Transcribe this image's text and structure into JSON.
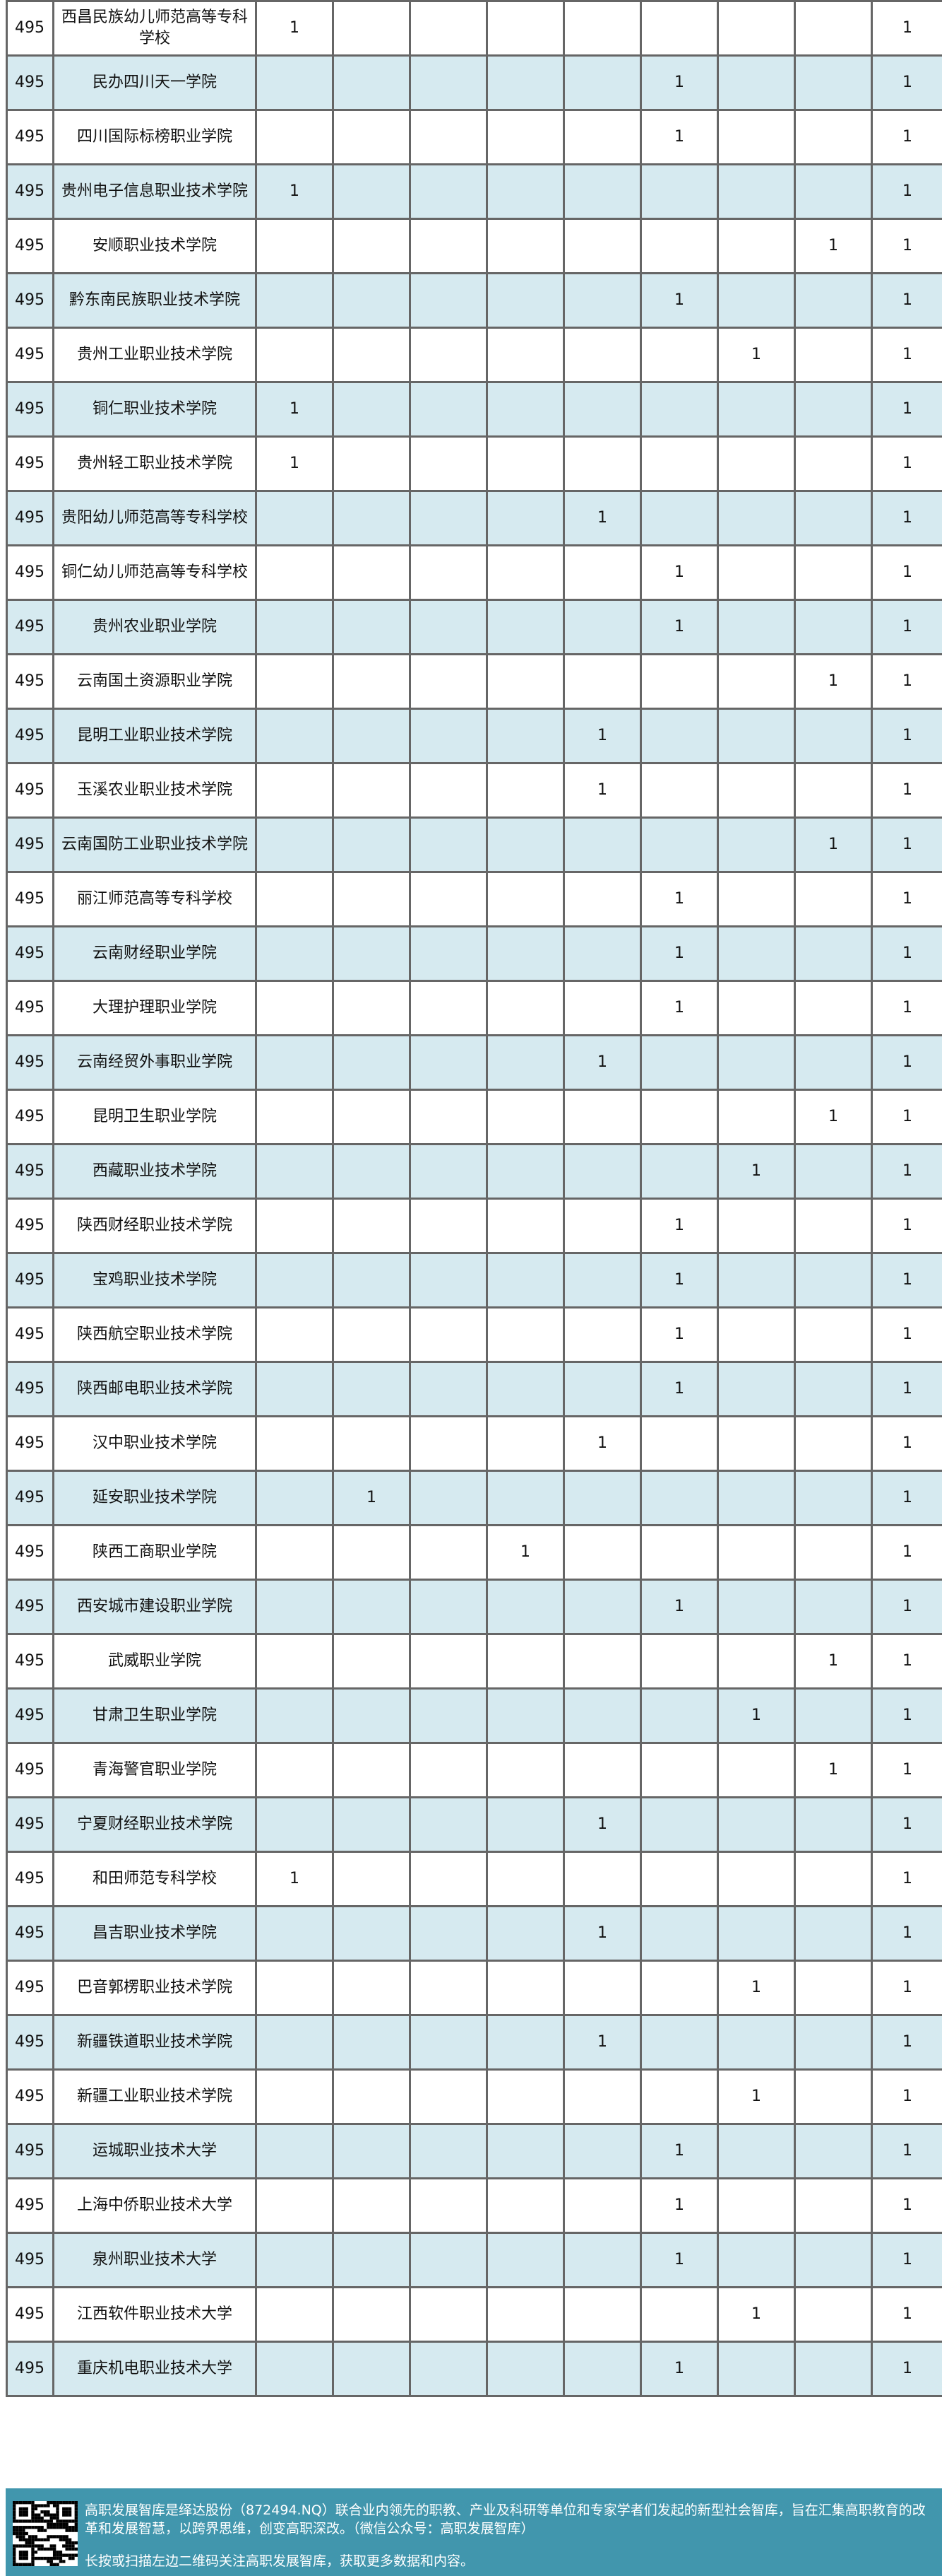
{
  "colors": {
    "row_alt": "#d6eaf0",
    "border": "#666666",
    "footer_bg": "#4196ad"
  },
  "rows": [
    {
      "rank": "495",
      "name": "西昌民族幼儿师范高等专科学校",
      "col": 1,
      "total": "1"
    },
    {
      "rank": "495",
      "name": "民办四川天一学院",
      "col": 6,
      "total": "1"
    },
    {
      "rank": "495",
      "name": "四川国际标榜职业学院",
      "col": 6,
      "total": "1"
    },
    {
      "rank": "495",
      "name": "贵州电子信息职业技术学院",
      "col": 1,
      "total": "1"
    },
    {
      "rank": "495",
      "name": "安顺职业技术学院",
      "col": 8,
      "total": "1"
    },
    {
      "rank": "495",
      "name": "黔东南民族职业技术学院",
      "col": 6,
      "total": "1"
    },
    {
      "rank": "495",
      "name": "贵州工业职业技术学院",
      "col": 7,
      "total": "1"
    },
    {
      "rank": "495",
      "name": "铜仁职业技术学院",
      "col": 1,
      "total": "1"
    },
    {
      "rank": "495",
      "name": "贵州轻工职业技术学院",
      "col": 1,
      "total": "1"
    },
    {
      "rank": "495",
      "name": "贵阳幼儿师范高等专科学校",
      "col": 5,
      "total": "1"
    },
    {
      "rank": "495",
      "name": "铜仁幼儿师范高等专科学校",
      "col": 6,
      "total": "1"
    },
    {
      "rank": "495",
      "name": "贵州农业职业学院",
      "col": 6,
      "total": "1"
    },
    {
      "rank": "495",
      "name": "云南国土资源职业学院",
      "col": 8,
      "total": "1"
    },
    {
      "rank": "495",
      "name": "昆明工业职业技术学院",
      "col": 5,
      "total": "1"
    },
    {
      "rank": "495",
      "name": "玉溪农业职业技术学院",
      "col": 5,
      "total": "1"
    },
    {
      "rank": "495",
      "name": "云南国防工业职业技术学院",
      "col": 8,
      "total": "1"
    },
    {
      "rank": "495",
      "name": "丽江师范高等专科学校",
      "col": 6,
      "total": "1"
    },
    {
      "rank": "495",
      "name": "云南财经职业学院",
      "col": 6,
      "total": "1"
    },
    {
      "rank": "495",
      "name": "大理护理职业学院",
      "col": 6,
      "total": "1"
    },
    {
      "rank": "495",
      "name": "云南经贸外事职业学院",
      "col": 5,
      "total": "1"
    },
    {
      "rank": "495",
      "name": "昆明卫生职业学院",
      "col": 8,
      "total": "1"
    },
    {
      "rank": "495",
      "name": "西藏职业技术学院",
      "col": 7,
      "total": "1"
    },
    {
      "rank": "495",
      "name": "陕西财经职业技术学院",
      "col": 6,
      "total": "1"
    },
    {
      "rank": "495",
      "name": "宝鸡职业技术学院",
      "col": 6,
      "total": "1"
    },
    {
      "rank": "495",
      "name": "陕西航空职业技术学院",
      "col": 6,
      "total": "1"
    },
    {
      "rank": "495",
      "name": "陕西邮电职业技术学院",
      "col": 6,
      "total": "1"
    },
    {
      "rank": "495",
      "name": "汉中职业技术学院",
      "col": 5,
      "total": "1"
    },
    {
      "rank": "495",
      "name": "延安职业技术学院",
      "col": 2,
      "total": "1"
    },
    {
      "rank": "495",
      "name": "陕西工商职业学院",
      "col": 4,
      "total": "1"
    },
    {
      "rank": "495",
      "name": "西安城市建设职业学院",
      "col": 6,
      "total": "1"
    },
    {
      "rank": "495",
      "name": "武威职业学院",
      "col": 8,
      "total": "1"
    },
    {
      "rank": "495",
      "name": "甘肃卫生职业学院",
      "col": 7,
      "total": "1"
    },
    {
      "rank": "495",
      "name": "青海警官职业学院",
      "col": 8,
      "total": "1"
    },
    {
      "rank": "495",
      "name": "宁夏财经职业技术学院",
      "col": 5,
      "total": "1"
    },
    {
      "rank": "495",
      "name": "和田师范专科学校",
      "col": 1,
      "total": "1"
    },
    {
      "rank": "495",
      "name": "昌吉职业技术学院",
      "col": 5,
      "total": "1"
    },
    {
      "rank": "495",
      "name": "巴音郭楞职业技术学院",
      "col": 7,
      "total": "1"
    },
    {
      "rank": "495",
      "name": "新疆铁道职业技术学院",
      "col": 5,
      "total": "1"
    },
    {
      "rank": "495",
      "name": "新疆工业职业技术学院",
      "col": 7,
      "total": "1"
    },
    {
      "rank": "495",
      "name": "运城职业技术大学",
      "col": 6,
      "total": "1"
    },
    {
      "rank": "495",
      "name": "上海中侨职业技术大学",
      "col": 6,
      "total": "1"
    },
    {
      "rank": "495",
      "name": "泉州职业技术大学",
      "col": 6,
      "total": "1"
    },
    {
      "rank": "495",
      "name": "江西软件职业技术大学",
      "col": 7,
      "total": "1"
    },
    {
      "rank": "495",
      "name": "重庆机电职业技术大学",
      "col": 6,
      "total": "1"
    }
  ],
  "cell_value": "1",
  "footer": {
    "intro": "高职发展智库是绎达股份（872494.NQ）联合业内领先的职教、产业及科研等单位和专家学者们发起的新型社会智库，旨在汇集高职教育的改革和发展智慧，以跨界思维，创变高职深改。（微信公众号：高职发展智库）",
    "note": "长按或扫描左边二维码关注高职发展智库，获取更多数据和内容。",
    "qr_icon": "qr-code-icon"
  }
}
